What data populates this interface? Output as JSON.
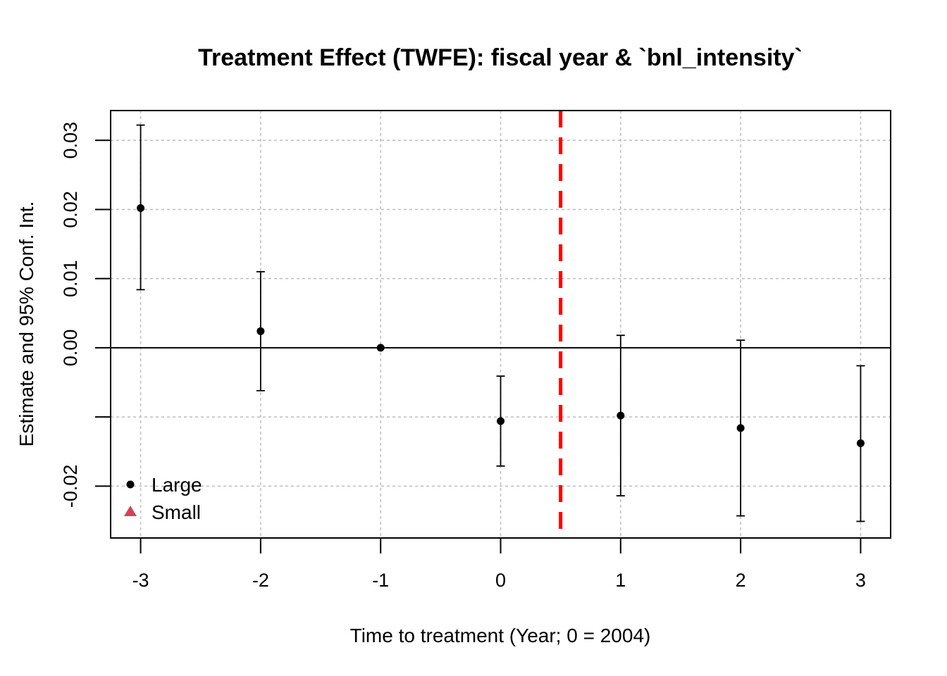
{
  "chart_data": {
    "type": "scatter",
    "title": "Treatment Effect (TWFE): fiscal year & `bnl_intensity`",
    "xlabel": "Time to treatment (Year; 0 = 2004)",
    "ylabel": "Estimate and 95% Conf. Int.",
    "xlim": [
      -3.25,
      3.25
    ],
    "ylim": [
      -0.0275,
      0.0343
    ],
    "x_ticks": [
      -3,
      -2,
      -1,
      0,
      1,
      2,
      3
    ],
    "x_tick_labels": [
      "-3",
      "-2",
      "-1",
      "0",
      "1",
      "2",
      "3"
    ],
    "y_ticks": [
      -0.02,
      -0.01,
      0.0,
      0.01,
      0.02,
      0.03
    ],
    "y_tick_labels": [
      "-0.02",
      "",
      "0.00",
      "0.01",
      "0.02",
      "0.03"
    ],
    "grid": true,
    "reference_hline": 0,
    "treatment_vline": {
      "x": 0.5,
      "color": "#ff0000",
      "style": "dashed"
    },
    "series": [
      {
        "name": "Large",
        "marker": "circle",
        "color": "#000000",
        "x": [
          -3,
          -2,
          -1,
          0,
          1,
          2,
          3
        ],
        "estimate": [
          0.0202,
          0.0024,
          0.0,
          -0.0106,
          -0.0098,
          -0.0116,
          -0.0138
        ],
        "ci_low": [
          0.0084,
          -0.0062,
          null,
          -0.0171,
          -0.0214,
          -0.0243,
          -0.0251
        ],
        "ci_high": [
          0.0322,
          0.011,
          null,
          -0.0041,
          0.0018,
          0.0011,
          -0.0026
        ]
      },
      {
        "name": "Small",
        "marker": "triangle",
        "color": "#d1435b",
        "x": [],
        "estimate": []
      }
    ],
    "legend": {
      "position": "bottom-left"
    }
  }
}
